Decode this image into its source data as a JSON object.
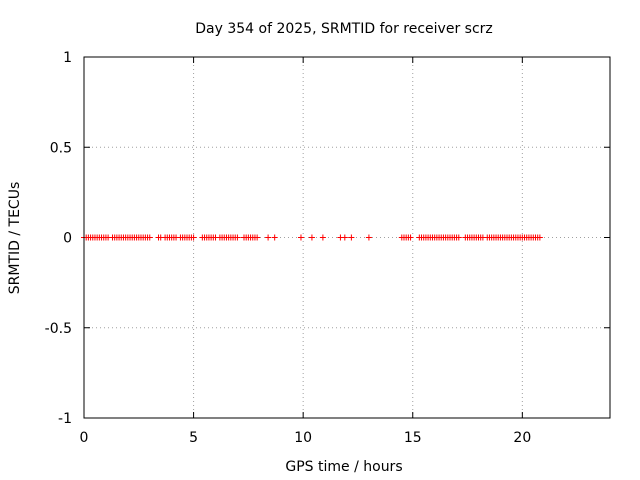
{
  "chart_data": {
    "type": "scatter",
    "title": "Day 354 of 2025, SRMTID for receiver scrz",
    "xlabel": "GPS time / hours",
    "ylabel": "SRMTID / TECUs",
    "xlim": [
      0,
      24
    ],
    "ylim": [
      -1,
      1
    ],
    "xticks": [
      0,
      5,
      10,
      15,
      20
    ],
    "xtick_labels": [
      "0",
      "5",
      "10",
      "15",
      "20"
    ],
    "yticks": [
      -1,
      -0.5,
      0,
      0.5,
      1
    ],
    "ytick_labels": [
      "-1",
      "-0.5",
      "0",
      "0.5",
      "1"
    ],
    "grid": true,
    "marker": "plus",
    "series_color": "#ff0000",
    "series": [
      {
        "x": [
          0.0,
          0.1,
          0.2,
          0.3,
          0.4,
          0.5,
          0.6,
          0.7,
          0.8,
          0.9,
          1.0,
          1.1,
          1.3,
          1.4,
          1.5,
          1.6,
          1.7,
          1.8,
          1.9,
          2.0,
          2.1,
          2.2,
          2.3,
          2.4,
          2.5,
          2.6,
          2.7,
          2.8,
          2.9,
          3.0,
          3.4,
          3.5,
          3.7,
          3.8,
          3.9,
          4.0,
          4.1,
          4.2,
          4.4,
          4.5,
          4.6,
          4.7,
          4.8,
          4.9,
          5.0,
          5.4,
          5.5,
          5.6,
          5.7,
          5.8,
          5.9,
          6.0,
          6.2,
          6.3,
          6.4,
          6.5,
          6.6,
          6.7,
          6.8,
          6.9,
          7.0,
          7.3,
          7.4,
          7.5,
          7.6,
          7.7,
          7.8,
          7.9,
          8.4,
          8.7,
          9.9,
          10.4,
          10.9,
          11.7,
          11.9,
          12.2,
          13.0,
          14.5,
          14.6,
          14.7,
          14.8,
          14.9,
          15.3,
          15.4,
          15.5,
          15.6,
          15.7,
          15.8,
          15.9,
          16.0,
          16.1,
          16.2,
          16.3,
          16.4,
          16.5,
          16.6,
          16.7,
          16.8,
          16.9,
          17.0,
          17.1,
          17.4,
          17.5,
          17.6,
          17.7,
          17.8,
          17.9,
          18.0,
          18.1,
          18.2,
          18.4,
          18.5,
          18.6,
          18.7,
          18.8,
          18.9,
          19.0,
          19.1,
          19.2,
          19.3,
          19.4,
          19.5,
          19.6,
          19.7,
          19.8,
          19.9,
          20.0,
          20.1,
          20.2,
          20.3,
          20.4,
          20.5,
          20.6,
          20.7,
          20.8
        ],
        "y_constant": 0
      }
    ]
  }
}
